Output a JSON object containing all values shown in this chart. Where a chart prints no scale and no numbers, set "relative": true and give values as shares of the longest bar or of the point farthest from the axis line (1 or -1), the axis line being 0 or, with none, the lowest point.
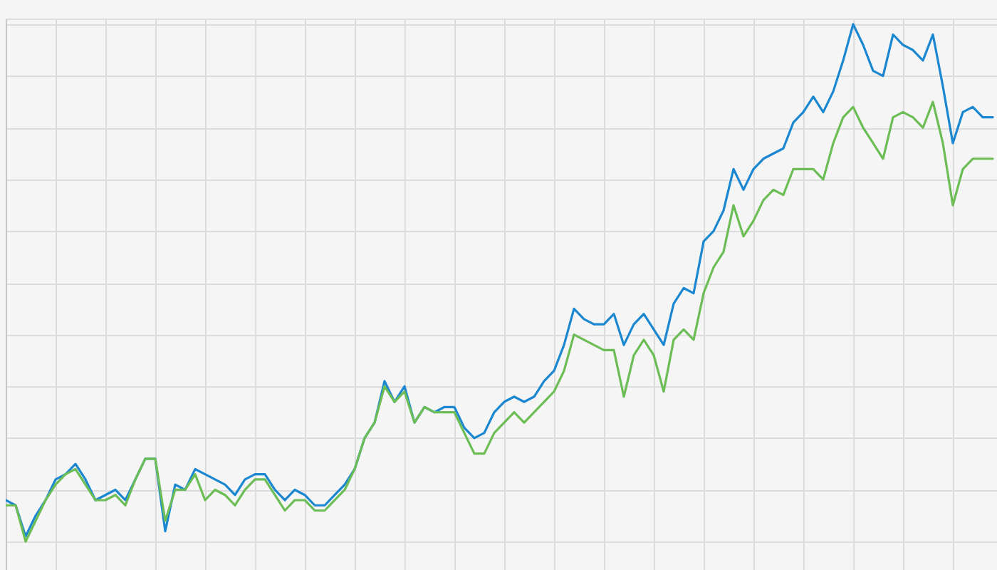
{
  "chart_data": {
    "type": "line",
    "relative": true,
    "grid": true,
    "categories": [
      null,
      null,
      null,
      null,
      null,
      null,
      null,
      null,
      null,
      null,
      null,
      null,
      null,
      null,
      null,
      null,
      null,
      null,
      null,
      null,
      null,
      null,
      null,
      null,
      null,
      null,
      null,
      null,
      null,
      null,
      null,
      null,
      null,
      null,
      null,
      null,
      null,
      null,
      null,
      null,
      null,
      null,
      null,
      null,
      null,
      null,
      null,
      null,
      null,
      null,
      null,
      null,
      null,
      null,
      null,
      null,
      null,
      null,
      null,
      null,
      null,
      null,
      null,
      null,
      null,
      null,
      null,
      null,
      null,
      null,
      null,
      null,
      null,
      null,
      null,
      null,
      null,
      null,
      null,
      null,
      null,
      null,
      null,
      null,
      null,
      null,
      null,
      null,
      null,
      null,
      null,
      null,
      null,
      null,
      null,
      null,
      null,
      null,
      null,
      null
    ],
    "series": [
      {
        "color": "#1a87d0",
        "values": [
          0.08,
          0.07,
          0.01,
          0.05,
          0.08,
          0.12,
          0.13,
          0.15,
          0.12,
          0.08,
          0.09,
          0.1,
          0.08,
          0.12,
          0.16,
          0.16,
          0.02,
          0.11,
          0.1,
          0.14,
          0.13,
          0.12,
          0.11,
          0.09,
          0.12,
          0.13,
          0.13,
          0.1,
          0.08,
          0.1,
          0.09,
          0.07,
          0.07,
          0.09,
          0.11,
          0.14,
          0.2,
          0.23,
          0.31,
          0.27,
          0.3,
          0.23,
          0.26,
          0.25,
          0.26,
          0.26,
          0.22,
          0.2,
          0.21,
          0.25,
          0.27,
          0.28,
          0.27,
          0.28,
          0.31,
          0.33,
          0.38,
          0.45,
          0.43,
          0.42,
          0.42,
          0.44,
          0.38,
          0.42,
          0.44,
          0.41,
          0.38,
          0.46,
          0.49,
          0.48,
          0.58,
          0.6,
          0.64,
          0.72,
          0.68,
          0.72,
          0.74,
          0.75,
          0.76,
          0.81,
          0.83,
          0.86,
          0.83,
          0.87,
          0.93,
          1.0,
          0.96,
          0.91,
          0.9,
          0.98,
          0.96,
          0.95,
          0.93,
          0.98,
          0.88,
          0.77,
          0.83,
          0.84,
          0.82,
          0.82
        ]
      },
      {
        "color": "#6cbd55",
        "values": [
          0.07,
          0.07,
          0.0,
          0.04,
          0.08,
          0.11,
          0.13,
          0.14,
          0.11,
          0.08,
          0.08,
          0.09,
          0.07,
          0.12,
          0.16,
          0.16,
          0.04,
          0.1,
          0.1,
          0.13,
          0.08,
          0.1,
          0.09,
          0.07,
          0.1,
          0.12,
          0.12,
          0.09,
          0.06,
          0.08,
          0.08,
          0.06,
          0.06,
          0.08,
          0.1,
          0.14,
          0.2,
          0.23,
          0.3,
          0.27,
          0.29,
          0.23,
          0.26,
          0.25,
          0.25,
          0.25,
          0.21,
          0.17,
          0.17,
          0.21,
          0.23,
          0.25,
          0.23,
          0.25,
          0.27,
          0.29,
          0.33,
          0.4,
          0.39,
          0.38,
          0.37,
          0.37,
          0.28,
          0.36,
          0.39,
          0.36,
          0.29,
          0.39,
          0.41,
          0.39,
          0.48,
          0.53,
          0.56,
          0.65,
          0.59,
          0.62,
          0.66,
          0.68,
          0.67,
          0.72,
          0.72,
          0.72,
          0.7,
          0.77,
          0.82,
          0.84,
          0.8,
          0.77,
          0.74,
          0.82,
          0.83,
          0.82,
          0.8,
          0.85,
          0.77,
          0.65,
          0.72,
          0.74,
          0.74,
          0.74
        ]
      }
    ]
  }
}
